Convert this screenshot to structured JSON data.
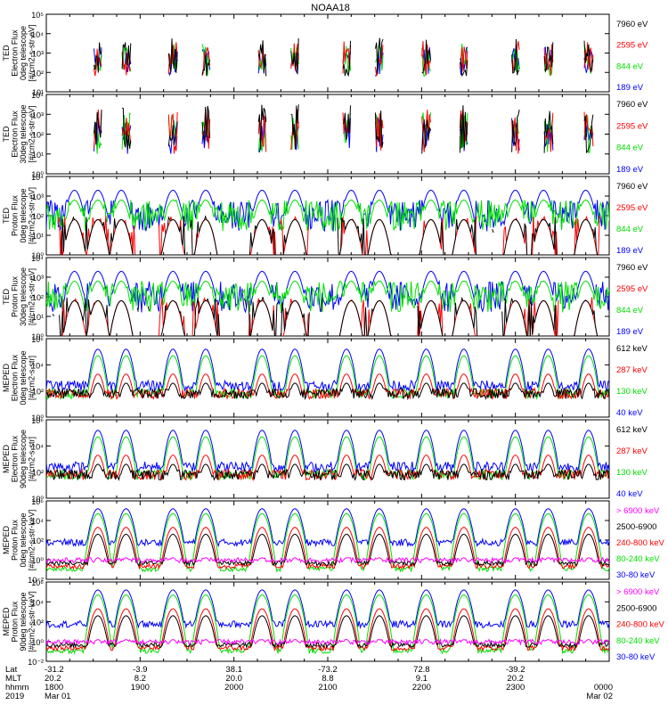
{
  "title": "NOAA18",
  "colors": {
    "blue": "#0000ff",
    "red": "#ff0000",
    "green": "#00e000",
    "black": "#000000",
    "magenta": "#ff00ff"
  },
  "footer": {
    "labels": [
      "Lat",
      "MLT",
      "hhmm",
      "2019"
    ],
    "columns": [
      {
        "rows": [
          "-31.2",
          "20.2",
          "1800",
          "Mar 01"
        ]
      },
      {
        "rows": [
          "-3.9",
          "8.2",
          "1900",
          ""
        ]
      },
      {
        "rows": [
          "38.1",
          "20.0",
          "2000",
          ""
        ]
      },
      {
        "rows": [
          "-73.2",
          "8.8",
          "2100",
          ""
        ]
      },
      {
        "rows": [
          "72.8",
          "9.1",
          "2200",
          ""
        ]
      },
      {
        "rows": [
          "-39.2",
          "20.2",
          "2300",
          ""
        ]
      },
      {
        "rows": [
          "",
          "",
          "0000",
          "Mar 02"
        ]
      }
    ]
  },
  "chart_data": [
    {
      "type": "line",
      "scale": "log",
      "ylabel": [
        "TED",
        "Electron Flux",
        "0deg telescope",
        "[#/cm2-s-str-eV]"
      ],
      "yticks": [
        "10¹",
        "10²",
        "10³",
        "10⁴",
        "10⁵"
      ],
      "ylim": [
        1,
        100000
      ],
      "series": [
        {
          "name": "7960 eV",
          "color": "black"
        },
        {
          "name": "2595 eV",
          "color": "red"
        },
        {
          "name": "844 eV",
          "color": "green"
        },
        {
          "name": "189 eV",
          "color": "blue"
        }
      ],
      "x_range_hours": [
        18,
        24
      ]
    },
    {
      "type": "line",
      "scale": "log",
      "ylabel": [
        "TED",
        "Electron Flux",
        "30deg telescope",
        "[#/cm2-s-str-eV]"
      ],
      "yticks": [
        "10⁰",
        "10¹",
        "10²",
        "10³",
        "10⁴"
      ],
      "ylim": [
        1,
        10000
      ],
      "series": [
        {
          "name": "7960 eV",
          "color": "black"
        },
        {
          "name": "2595 eV",
          "color": "red"
        },
        {
          "name": "844 eV",
          "color": "green"
        },
        {
          "name": "189 eV",
          "color": "blue"
        }
      ],
      "x_range_hours": [
        18,
        24
      ]
    },
    {
      "type": "line",
      "scale": "log",
      "ylabel": [
        "TED",
        "Proton Flux",
        "0deg telescope",
        "[#/cm2-s-str-eV]"
      ],
      "yticks": [
        "10⁰",
        "10¹",
        "10²",
        "10³",
        "10⁴"
      ],
      "ylim": [
        1,
        10000
      ],
      "series": [
        {
          "name": "7960 eV",
          "color": "black"
        },
        {
          "name": "2595 eV",
          "color": "red"
        },
        {
          "name": "844 eV",
          "color": "green"
        },
        {
          "name": "189 eV",
          "color": "blue"
        }
      ],
      "x_range_hours": [
        18,
        24
      ]
    },
    {
      "type": "line",
      "scale": "log",
      "ylabel": [
        "TED",
        "Proton Flux",
        "30deg telescope",
        "[#/cm2-s-str-eV]"
      ],
      "yticks": [
        "10⁰",
        "10¹",
        "10²",
        "10³",
        "10⁴"
      ],
      "ylim": [
        1,
        10000
      ],
      "series": [
        {
          "name": "7960 eV",
          "color": "black"
        },
        {
          "name": "2595 eV",
          "color": "red"
        },
        {
          "name": "844 eV",
          "color": "green"
        },
        {
          "name": "189 eV",
          "color": "blue"
        }
      ],
      "x_range_hours": [
        18,
        24
      ]
    },
    {
      "type": "line",
      "scale": "log",
      "ylabel": [
        "MEPED",
        "Electron Flux",
        "0deg telescope",
        "[#/cm2-s-str]"
      ],
      "yticks": [
        "10⁰",
        "10²",
        "10⁴",
        "10⁶"
      ],
      "ylim": [
        1,
        1000000
      ],
      "series": [
        {
          "name": "612 keV",
          "color": "black"
        },
        {
          "name": "287 keV",
          "color": "red"
        },
        {
          "name": "130 keV",
          "color": "green"
        },
        {
          "name": "40 keV",
          "color": "blue"
        }
      ],
      "x_range_hours": [
        18,
        24
      ]
    },
    {
      "type": "line",
      "scale": "log",
      "ylabel": [
        "MEPED",
        "Electron Flux",
        "90deg telescope",
        "[#/cm2-s-str]"
      ],
      "yticks": [
        "10⁰",
        "10²",
        "10⁴",
        "10⁶"
      ],
      "ylim": [
        1,
        1000000
      ],
      "series": [
        {
          "name": "612 keV",
          "color": "black"
        },
        {
          "name": "287 keV",
          "color": "red"
        },
        {
          "name": "130 keV",
          "color": "green"
        },
        {
          "name": "40 keV",
          "color": "blue"
        }
      ],
      "x_range_hours": [
        18,
        24
      ]
    },
    {
      "type": "line",
      "scale": "log",
      "ylabel": [
        "MEPED",
        "Proton Flux",
        "0deg telescope",
        "[#/cm2-s-str-keV]"
      ],
      "yticks": [
        "10⁻²",
        "10⁰",
        "10²",
        "10⁴",
        "10⁶"
      ],
      "ylim": [
        0.01,
        1000000
      ],
      "series": [
        {
          "name": "> 6900 keV",
          "color": "magenta"
        },
        {
          "name": "2500-6900",
          "color": "black"
        },
        {
          "name": "240-800 keV",
          "color": "red"
        },
        {
          "name": "80-240 keV",
          "color": "green"
        },
        {
          "name": "30-80 keV",
          "color": "blue"
        }
      ],
      "x_range_hours": [
        18,
        24
      ]
    },
    {
      "type": "line",
      "scale": "log",
      "ylabel": [
        "MEPED",
        "Proton Flux",
        "90deg telescope",
        "[#/cm2-s-str-keV]"
      ],
      "yticks": [
        "10⁻²",
        "10⁰",
        "10²",
        "10⁴",
        "10⁶"
      ],
      "ylim": [
        0.01,
        1000000
      ],
      "series": [
        {
          "name": "> 6900 keV",
          "color": "magenta"
        },
        {
          "name": "2500-6900",
          "color": "black"
        },
        {
          "name": "240-800 keV",
          "color": "red"
        },
        {
          "name": "80-240 keV",
          "color": "green"
        },
        {
          "name": "30-80 keV",
          "color": "blue"
        }
      ],
      "x_range_hours": [
        18,
        24
      ]
    }
  ]
}
